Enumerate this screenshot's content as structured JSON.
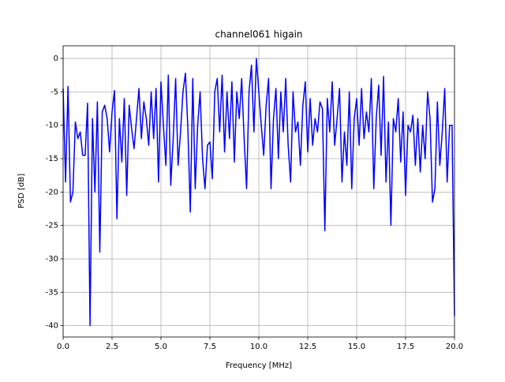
{
  "chart_data": {
    "type": "line",
    "title": "channel061 higain",
    "xlabel": "Frequency [MHz]",
    "ylabel": "PSD [dB]",
    "x": [
      0,
      0.125,
      0.25,
      0.375,
      0.5,
      0.625,
      0.75,
      0.875,
      1,
      1.125,
      1.25,
      1.375,
      1.5,
      1.625,
      1.75,
      1.875,
      2,
      2.125,
      2.25,
      2.375,
      2.5,
      2.625,
      2.75,
      2.875,
      3,
      3.125,
      3.25,
      3.375,
      3.5,
      3.625,
      3.75,
      3.875,
      4,
      4.125,
      4.25,
      4.375,
      4.5,
      4.625,
      4.75,
      4.875,
      5,
      5.125,
      5.25,
      5.375,
      5.5,
      5.625,
      5.75,
      5.875,
      6,
      6.125,
      6.25,
      6.375,
      6.5,
      6.625,
      6.75,
      6.875,
      7,
      7.125,
      7.25,
      7.375,
      7.5,
      7.625,
      7.75,
      7.875,
      8,
      8.125,
      8.25,
      8.375,
      8.5,
      8.625,
      8.75,
      8.875,
      9,
      9.125,
      9.25,
      9.375,
      9.5,
      9.625,
      9.75,
      9.875,
      10,
      10.125,
      10.25,
      10.375,
      10.5,
      10.625,
      10.75,
      10.875,
      11,
      11.125,
      11.25,
      11.375,
      11.5,
      11.625,
      11.75,
      11.875,
      12,
      12.125,
      12.25,
      12.375,
      12.5,
      12.625,
      12.75,
      12.875,
      13,
      13.125,
      13.25,
      13.375,
      13.5,
      13.625,
      13.75,
      13.875,
      14,
      14.125,
      14.25,
      14.375,
      14.5,
      14.625,
      14.75,
      14.875,
      15,
      15.125,
      15.25,
      15.375,
      15.5,
      15.625,
      15.75,
      15.875,
      16,
      16.125,
      16.25,
      16.375,
      16.5,
      16.625,
      16.75,
      16.875,
      17,
      17.125,
      17.25,
      17.375,
      17.5,
      17.625,
      17.75,
      17.875,
      18,
      18.125,
      18.25,
      18.375,
      18.5,
      18.625,
      18.75,
      18.875,
      19,
      19.125,
      19.25,
      19.375,
      19.5,
      19.625,
      19.75,
      19.875,
      20
    ],
    "series": [
      {
        "color": "#0000ff",
        "values": [
          -4.5,
          -18.5,
          -4.2,
          -21.5,
          -20,
          -9.5,
          -12,
          -11,
          -14.5,
          -14.5,
          -6.7,
          -40,
          -9,
          -20,
          -6.5,
          -29,
          -8,
          -7,
          -9,
          -14,
          -8,
          -4.8,
          -24,
          -9,
          -15.5,
          -6,
          -20.5,
          -7,
          -10.5,
          -13.5,
          -9,
          -4.5,
          -12,
          -6.5,
          -9,
          -13,
          -5,
          -12,
          -4.5,
          -18.5,
          -3.5,
          -10,
          -16,
          -2.5,
          -19,
          -12,
          -3,
          -16,
          -11,
          -5,
          -2.2,
          -10.5,
          -23,
          -3,
          -19.5,
          -10,
          -5,
          -15,
          -19.5,
          -13,
          -12.5,
          -18,
          -5,
          -3,
          -11,
          -2.5,
          -14,
          -5,
          -12,
          -3.5,
          -15.5,
          -5,
          -9,
          -3,
          -12,
          -19.5,
          -5,
          -1,
          -11,
          0,
          -5,
          -10,
          -14.5,
          -7,
          -3,
          -19.5,
          -9,
          -4.5,
          -15,
          -5,
          -11,
          -3,
          -13,
          -18.5,
          -5,
          -11,
          -9.5,
          -16,
          -7,
          -3.5,
          -14,
          -6,
          -13,
          -9,
          -11,
          -6.5,
          -7.5,
          -25.8,
          -6,
          -11,
          -3.5,
          -13,
          -9,
          -4.5,
          -18.5,
          -11,
          -16,
          -5,
          -19.5,
          -9,
          -6,
          -13,
          -4.5,
          -12,
          -8,
          -11,
          -3,
          -19.5,
          -9,
          -4,
          -14.5,
          -2.7,
          -18.5,
          -9.5,
          -25,
          -9,
          -11,
          -6,
          -15.5,
          -8,
          -20.5,
          -10,
          -11,
          -8.5,
          -16,
          -9,
          -17,
          -10,
          -15,
          -5,
          -9,
          -21.5,
          -19.5,
          -6.5,
          -16,
          -11,
          -4.5,
          -18.5,
          -10,
          -10,
          -38.5
        ]
      }
    ],
    "xlim": [
      0,
      20
    ],
    "ylim": [
      -41.7,
      1.9
    ],
    "xticks": [
      {
        "value": 0,
        "label": "0.0"
      },
      {
        "value": 2.5,
        "label": "2.5"
      },
      {
        "value": 5,
        "label": "5.0"
      },
      {
        "value": 7.5,
        "label": "7.5"
      },
      {
        "value": 10,
        "label": "10.0"
      },
      {
        "value": 12.5,
        "label": "12.5"
      },
      {
        "value": 15,
        "label": "15.0"
      },
      {
        "value": 17.5,
        "label": "17.5"
      },
      {
        "value": 20,
        "label": "20.0"
      }
    ],
    "yticks": [
      0,
      -5,
      -10,
      -15,
      -20,
      -25,
      -30,
      -35,
      -40
    ],
    "grid": true
  }
}
